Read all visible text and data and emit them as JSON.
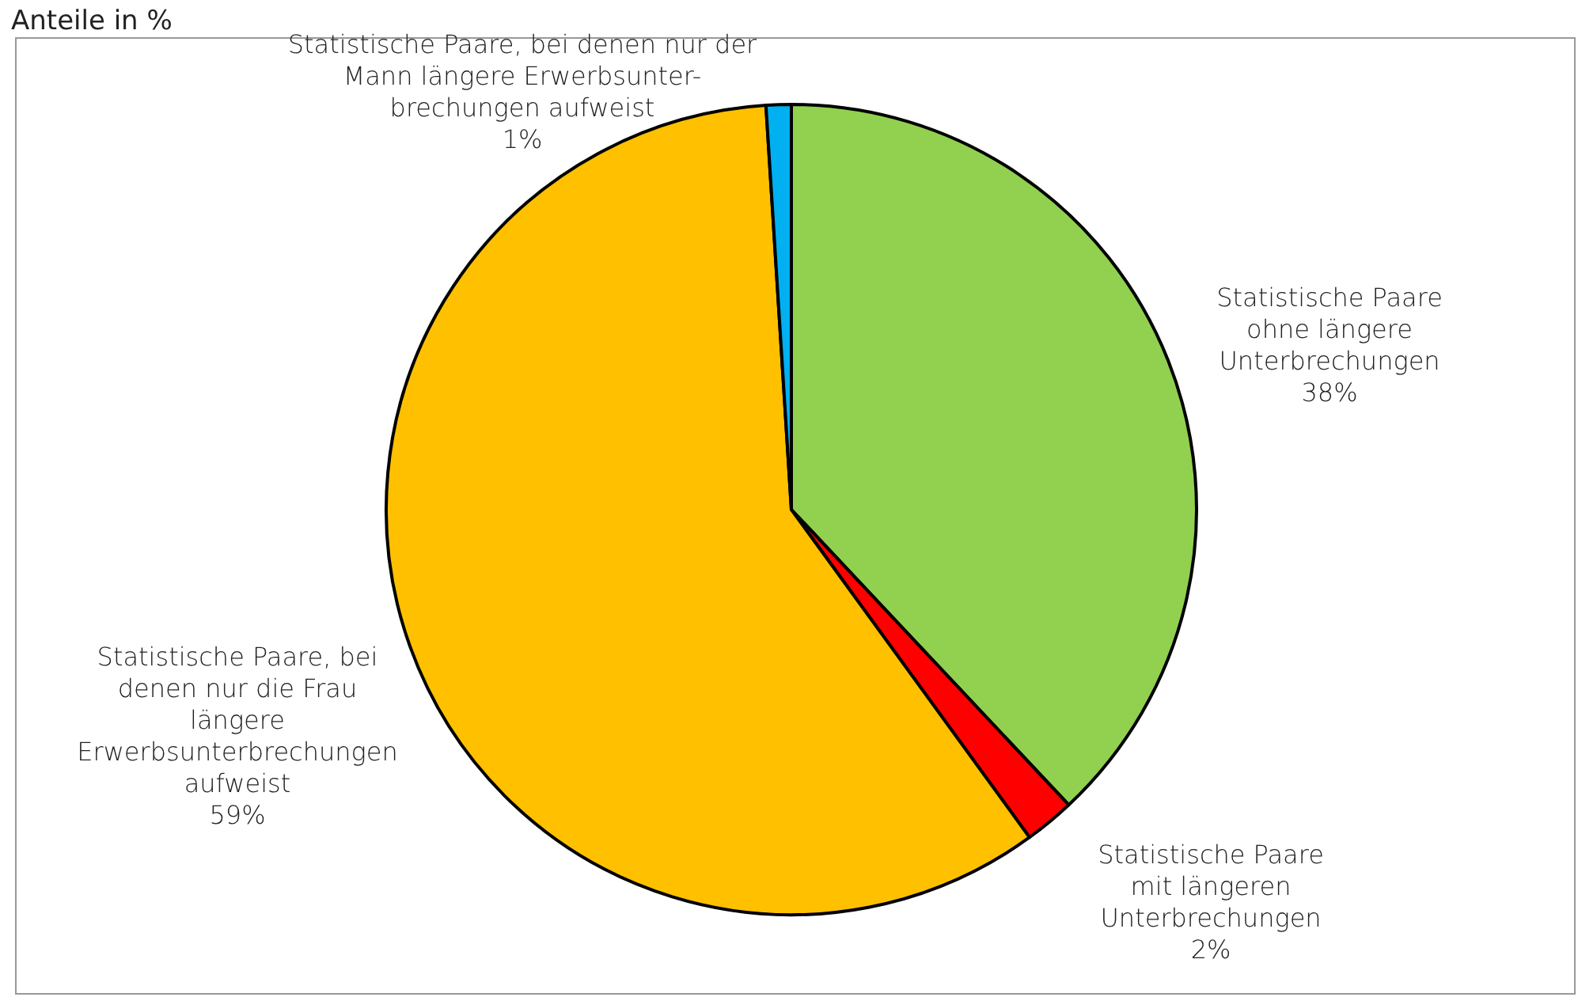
{
  "chart_data": {
    "type": "pie",
    "title": "Anteile in %",
    "categories": [
      "Statistische Paare\nohne längere\nUnterbrechungen",
      "Statistische Paare\nmit längeren\nUnterbrechungen",
      "Statistische Paare, bei\ndenen nur die Frau\nlängere\nErwerbsunterbrechungen\naufweist",
      "Statistische Paare, bei denen nur der\nMann längere Erwerbsunter-\nbrechungen aufweist"
    ],
    "values": [
      38,
      2,
      59,
      1
    ],
    "colors": [
      "#92d050",
      "#ff0000",
      "#ffc000",
      "#00b0f0"
    ],
    "value_labels": [
      "38%",
      "2%",
      "59%",
      "1%"
    ],
    "legend": false
  }
}
